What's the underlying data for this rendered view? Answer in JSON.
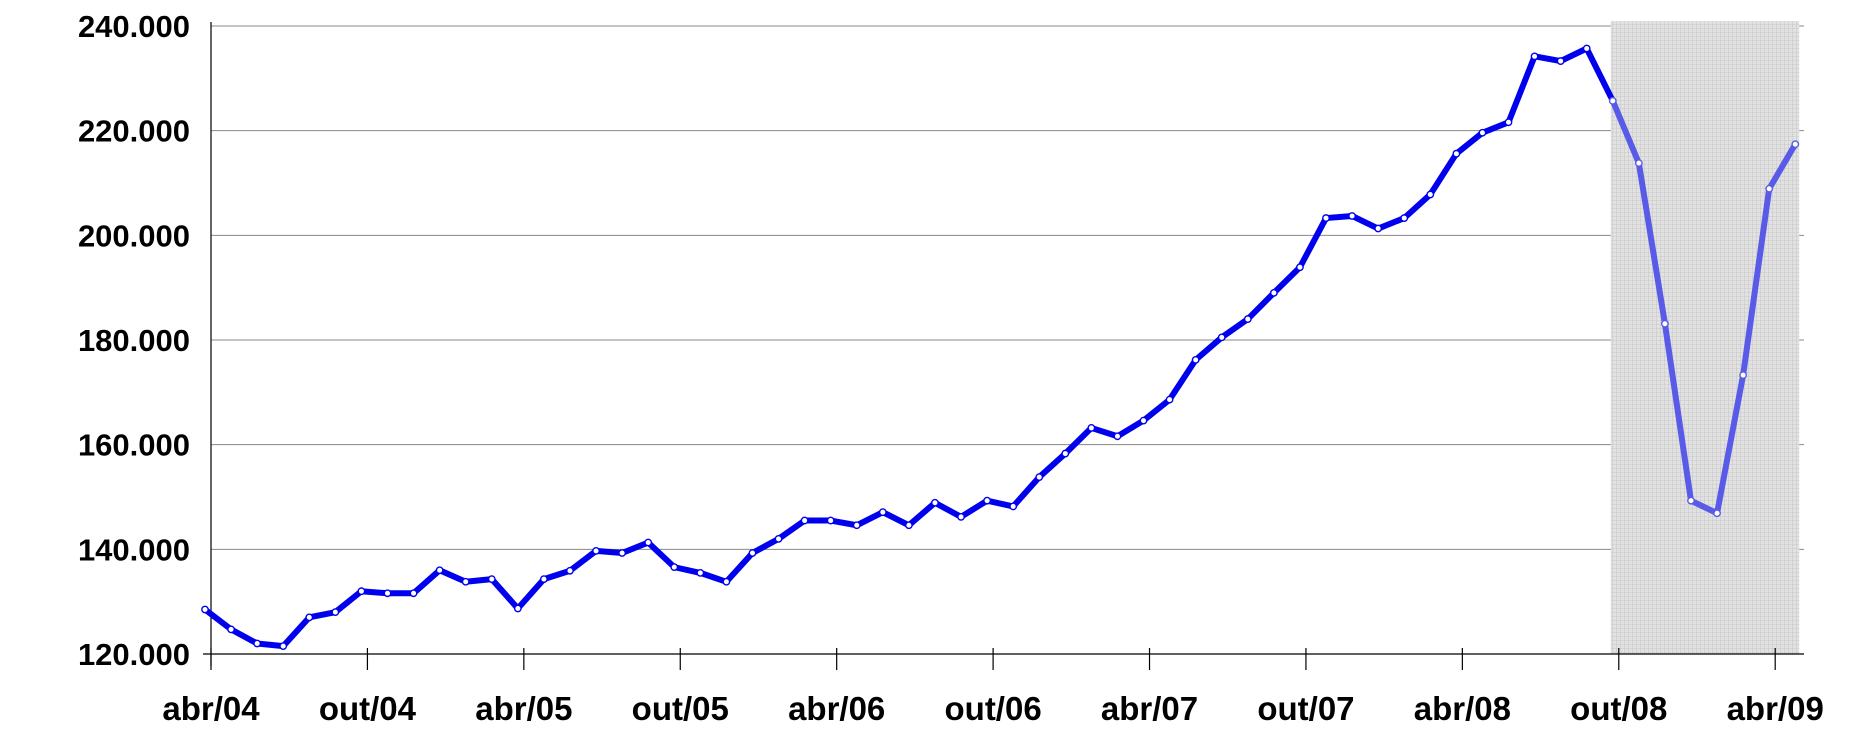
{
  "chart_data": {
    "type": "line",
    "categories": [
      "abr/04",
      null,
      null,
      null,
      null,
      null,
      "out/04",
      null,
      null,
      null,
      null,
      null,
      "abr/05",
      null,
      null,
      null,
      null,
      null,
      "out/05",
      null,
      null,
      null,
      null,
      null,
      "abr/06",
      null,
      null,
      null,
      null,
      null,
      "out/06",
      null,
      null,
      null,
      null,
      null,
      "abr/07",
      null,
      null,
      null,
      null,
      null,
      "out/07",
      null,
      null,
      null,
      null,
      null,
      "abr/08",
      null,
      null,
      null,
      null,
      null,
      "out/08",
      null,
      null,
      null,
      null,
      null,
      "abr/09",
      null
    ],
    "series": [
      {
        "name": null,
        "color": "#0000ee",
        "shaded_color": "#5a5ae8",
        "values": [
          128500,
          124700,
          122000,
          121500,
          127000,
          128000,
          132000,
          131600,
          131600,
          136000,
          133800,
          134300,
          128700,
          134300,
          135900,
          139700,
          139300,
          141300,
          136600,
          135500,
          133800,
          139300,
          142000,
          145500,
          145500,
          144600,
          147100,
          144600,
          148900,
          146200,
          149300,
          148200,
          153800,
          158300,
          163200,
          161600,
          164600,
          168600,
          176200,
          180500,
          184000,
          189000,
          193900,
          203300,
          203700,
          201300,
          203300,
          207800,
          215600,
          219600,
          221600,
          234200,
          233300,
          235700,
          225700,
          213800,
          183100,
          149300,
          146900,
          173300,
          208900,
          217400
        ]
      }
    ],
    "shaded_from_index": 54,
    "ylim": [
      120000,
      240000
    ],
    "yticks": [
      {
        "value": 120000,
        "label": "120.000"
      },
      {
        "value": 140000,
        "label": "140.000"
      },
      {
        "value": 160000,
        "label": "160.000"
      },
      {
        "value": 180000,
        "label": "180.000"
      },
      {
        "value": 200000,
        "label": "200.000"
      },
      {
        "value": 220000,
        "label": "220.000"
      },
      {
        "value": 240000,
        "label": "240.000"
      }
    ],
    "grid": true
  }
}
